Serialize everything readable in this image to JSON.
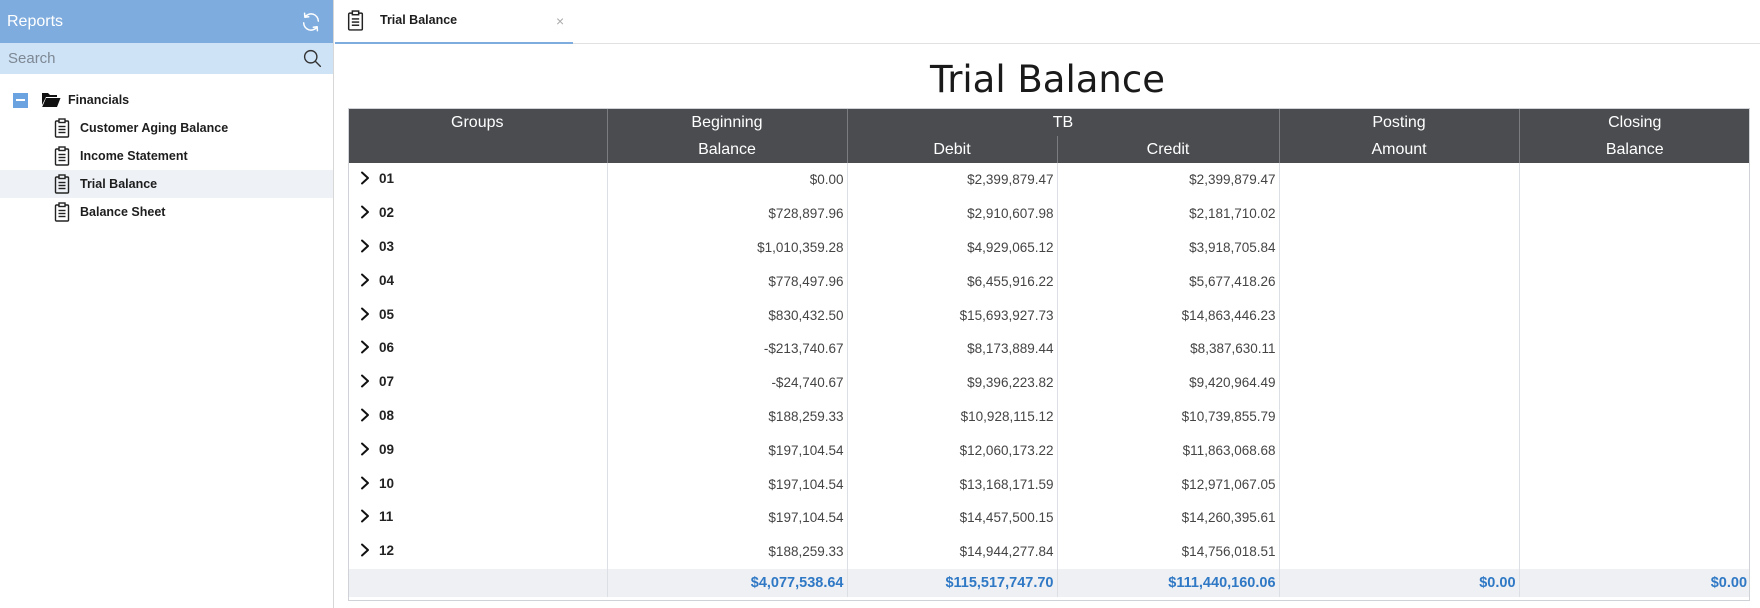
{
  "sidebar": {
    "title": "Reports",
    "search_placeholder": "Search",
    "folder": {
      "label": "Financials"
    },
    "items": [
      {
        "label": "Customer Aging Balance"
      },
      {
        "label": "Income Statement"
      },
      {
        "label": "Trial Balance",
        "selected": true
      },
      {
        "label": "Balance Sheet"
      }
    ]
  },
  "tab": {
    "label": "Trial Balance",
    "close": "×"
  },
  "report": {
    "title": "Trial Balance",
    "headers": {
      "groups": "Groups",
      "beginning_top": "Beginning",
      "beginning_bottom": "Balance",
      "tb": "TB",
      "debit": "Debit",
      "credit": "Credit",
      "posting_top": "Posting",
      "posting_bottom": "Amount",
      "closing_top": "Closing",
      "closing_bottom": "Balance"
    },
    "rows": [
      {
        "group": "01",
        "beginning": "$0.00",
        "debit": "$2,399,879.47",
        "credit": "$2,399,879.47",
        "posting": "",
        "closing": ""
      },
      {
        "group": "02",
        "beginning": "$728,897.96",
        "debit": "$2,910,607.98",
        "credit": "$2,181,710.02",
        "posting": "",
        "closing": ""
      },
      {
        "group": "03",
        "beginning": "$1,010,359.28",
        "debit": "$4,929,065.12",
        "credit": "$3,918,705.84",
        "posting": "",
        "closing": ""
      },
      {
        "group": "04",
        "beginning": "$778,497.96",
        "debit": "$6,455,916.22",
        "credit": "$5,677,418.26",
        "posting": "",
        "closing": ""
      },
      {
        "group": "05",
        "beginning": "$830,432.50",
        "debit": "$15,693,927.73",
        "credit": "$14,863,446.23",
        "posting": "",
        "closing": ""
      },
      {
        "group": "06",
        "beginning": "-$213,740.67",
        "debit": "$8,173,889.44",
        "credit": "$8,387,630.11",
        "posting": "",
        "closing": ""
      },
      {
        "group": "07",
        "beginning": "-$24,740.67",
        "debit": "$9,396,223.82",
        "credit": "$9,420,964.49",
        "posting": "",
        "closing": ""
      },
      {
        "group": "08",
        "beginning": "$188,259.33",
        "debit": "$10,928,115.12",
        "credit": "$10,739,855.79",
        "posting": "",
        "closing": ""
      },
      {
        "group": "09",
        "beginning": "$197,104.54",
        "debit": "$12,060,173.22",
        "credit": "$11,863,068.68",
        "posting": "",
        "closing": ""
      },
      {
        "group": "10",
        "beginning": "$197,104.54",
        "debit": "$13,168,171.59",
        "credit": "$12,971,067.05",
        "posting": "",
        "closing": ""
      },
      {
        "group": "11",
        "beginning": "$197,104.54",
        "debit": "$14,457,500.15",
        "credit": "$14,260,395.61",
        "posting": "",
        "closing": ""
      },
      {
        "group": "12",
        "beginning": "$188,259.33",
        "debit": "$14,944,277.84",
        "credit": "$14,756,018.51",
        "posting": "",
        "closing": ""
      }
    ],
    "totals": {
      "beginning": "$4,077,538.64",
      "debit": "$115,517,747.70",
      "credit": "$111,440,160.06",
      "posting": "$0.00",
      "closing": "$0.00"
    }
  },
  "icons": {
    "refresh": "refresh-icon",
    "search": "search-icon",
    "folder": "folder-open-icon",
    "report": "clipboard-icon",
    "expand": "chevron-right-icon",
    "collapse": "collapse-minus-icon",
    "close": "close-icon"
  },
  "colors": {
    "sidebar_header": "#7facde",
    "search_bg": "#cfe3f6",
    "table_header": "#4a4c50",
    "totals_text": "#2f78c5",
    "tab_underline": "#7facde"
  }
}
